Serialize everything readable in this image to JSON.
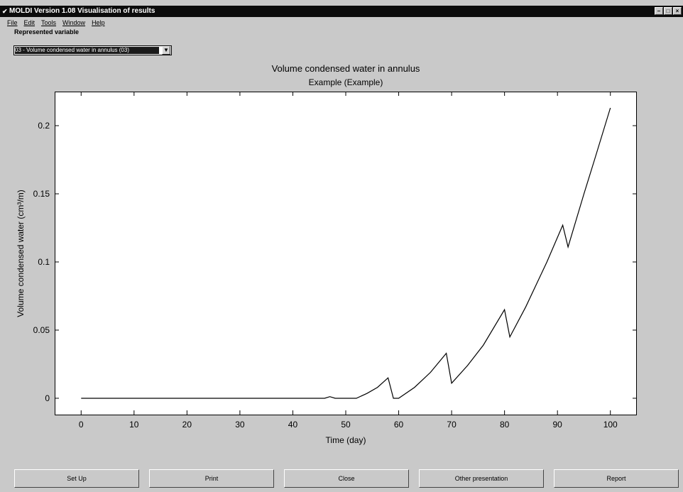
{
  "window": {
    "title": "MOLDI Version 1.08     Visualisation of results",
    "icon": "app-icon",
    "controls": [
      "minimize",
      "maximize",
      "close"
    ]
  },
  "menu": [
    "File",
    "Edit",
    "Tools",
    "Window",
    "Help"
  ],
  "represented_variable": {
    "label": "Represented variable",
    "value": "03 - Volume condensed water in annulus (03)"
  },
  "buttons": {
    "setup": "Set Up",
    "print": "Print",
    "close": "Close",
    "other": "Other presentation",
    "report": "Report"
  },
  "chart_data": {
    "type": "line",
    "title": "Volume condensed water in annulus",
    "subtitle": "Example (Example)",
    "xlabel": "Time (day)",
    "ylabel": "Volume condensed water (cm³/m)",
    "xlim": [
      -5,
      105
    ],
    "ylim": [
      -0.012,
      0.225
    ],
    "xticks": [
      0,
      10,
      20,
      30,
      40,
      50,
      60,
      70,
      80,
      90,
      100
    ],
    "yticks": [
      0,
      0.05,
      0.1,
      0.15,
      0.2
    ],
    "ytick_labels": [
      "0",
      "0.05",
      "0.1",
      "0.15",
      "0.2"
    ],
    "grid": false,
    "series": [
      {
        "x": [
          0,
          46,
          47,
          48,
          52,
          54,
          56,
          58,
          59,
          60,
          63,
          66,
          69,
          70,
          73,
          76,
          80,
          81,
          84,
          88,
          91,
          92,
          95,
          97,
          100
        ],
        "y": [
          0,
          0,
          0.0012,
          0,
          0,
          0.0035,
          0.008,
          0.015,
          0,
          0,
          0.008,
          0.019,
          0.033,
          0.011,
          0.024,
          0.039,
          0.065,
          0.045,
          0.067,
          0.1,
          0.127,
          0.111,
          0.15,
          0.175,
          0.213
        ]
      }
    ]
  }
}
